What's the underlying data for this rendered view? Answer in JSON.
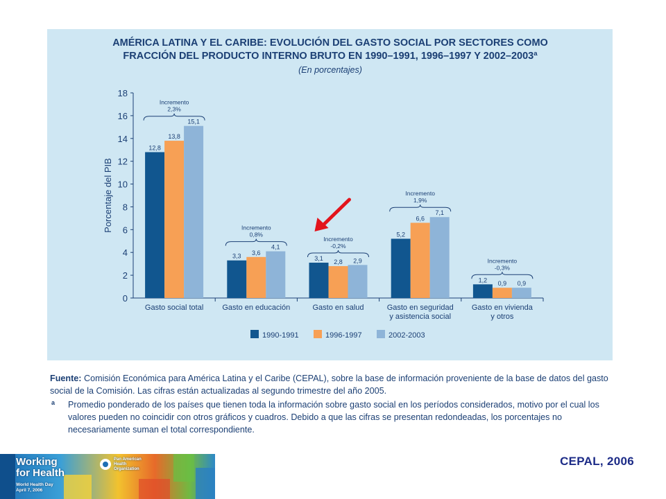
{
  "chart_data": {
    "type": "bar",
    "title_lines": [
      "AMÉRICA LATINA Y EL CARIBE: EVOLUCIÓN DEL GASTO SOCIAL POR SECTORES COMO",
      "FRACCIÓN DEL PRODUCTO INTERNO BRUTO EN 1990–1991, 1996–1997 Y 2002–2003ª"
    ],
    "subtitle": "(En porcentajes)",
    "ylabel": "Porcentaje del PIB",
    "ylim": [
      0,
      18
    ],
    "yticks": [
      0,
      2,
      4,
      6,
      8,
      10,
      12,
      14,
      16,
      18
    ],
    "grid": false,
    "legend_position": "bottom",
    "categories": [
      [
        "Gasto social total"
      ],
      [
        "Gasto en educación"
      ],
      [
        "Gasto en salud"
      ],
      [
        "Gasto en seguridad",
        "y asistencia social"
      ],
      [
        "Gasto en vivienda",
        "y otros"
      ]
    ],
    "series": [
      {
        "name": "1990-1991",
        "color": "#11568f",
        "values": [
          12.8,
          3.3,
          3.1,
          5.2,
          1.2
        ],
        "labels": [
          "12,8",
          "3,3",
          "3,1",
          "5,2",
          "1,2"
        ]
      },
      {
        "name": "1996-1997",
        "color": "#f7a055",
        "values": [
          13.8,
          3.6,
          2.8,
          6.6,
          0.9
        ],
        "labels": [
          "13,8",
          "3,6",
          "2,8",
          "6,6",
          "0,9"
        ]
      },
      {
        "name": "2002-2003",
        "color": "#8eb4d8",
        "values": [
          15.1,
          4.1,
          2.9,
          7.1,
          0.9
        ],
        "labels": [
          "15,1",
          "4,1",
          "2,9",
          "7,1",
          "0,9"
        ]
      }
    ],
    "annotations": [
      {
        "category": 0,
        "label": "Incremento",
        "value": "2,3%"
      },
      {
        "category": 1,
        "label": "Incremento",
        "value": "0,8%"
      },
      {
        "category": 2,
        "label": "Incremento",
        "value": "-0,2%"
      },
      {
        "category": 3,
        "label": "Incremento",
        "value": "1,9%"
      },
      {
        "category": 4,
        "label": "Incremento",
        "value": "-0,3%"
      }
    ],
    "highlight_arrow": {
      "target_category": 2,
      "color": "#e3141c"
    }
  },
  "source": {
    "label": "Fuente:",
    "text": "Comisión Económica para América Latina y el Caribe (CEPAL), sobre la base de información proveniente de la base de datos del gasto social de la Comisión. Las cifras están actualizadas al segundo trimestre del año 2005.",
    "note_mark": "a",
    "note_text": "Promedio ponderado de los países que tienen toda la información sobre gasto social en los períodos considerados, motivo por el cual los valores pueden no coincidir con otros gráficos y cuadros. Debido a que las cifras se presentan redondeadas, los porcentajes no necesariamente suman el total correspondiente."
  },
  "footer": {
    "banner_title_1": "Working",
    "banner_title_2": "for Health",
    "banner_day_1": "World Health Day",
    "banner_day_2": "April 7, 2006",
    "org_name_1": "Pan American",
    "org_name_2": "Health",
    "org_name_3": "Organization",
    "credit": "CEPAL, 2006"
  }
}
